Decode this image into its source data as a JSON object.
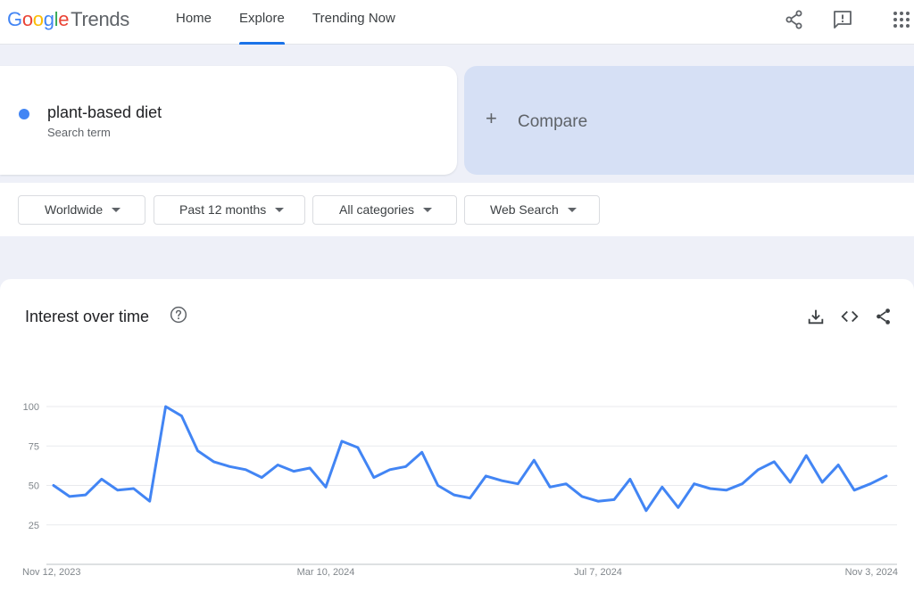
{
  "header": {
    "logo_google": [
      "G",
      "o",
      "o",
      "g",
      "l",
      "e"
    ],
    "logo_trends": "Trends",
    "nav": {
      "home": "Home",
      "explore": "Explore",
      "trending": "Trending Now"
    },
    "icons": [
      "share-icon",
      "feedback-icon",
      "apps-grid-icon"
    ]
  },
  "search_term": {
    "name": "plant-based diet",
    "subtitle": "Search term",
    "color": "#4285f4"
  },
  "compare": {
    "label": "Compare",
    "icon": "plus-icon"
  },
  "filters": {
    "region": "Worldwide",
    "period": "Past 12 months",
    "category": "All categories",
    "property": "Web Search"
  },
  "chart_card": {
    "title": "Interest over time",
    "icons": [
      "help-icon",
      "download-icon",
      "embed-icon",
      "share-icon"
    ]
  },
  "chart_data": {
    "type": "line",
    "title": "Interest over time",
    "ylim": [
      0,
      100
    ],
    "y_ticks": [
      "100",
      "75",
      "50",
      "25"
    ],
    "x_tick_labels": [
      "Nov 12, 2023",
      "Mar 10, 2024",
      "Jul 7, 2024",
      "Nov 3, 2024"
    ],
    "x_tick_indices": [
      0,
      17,
      34,
      51
    ],
    "grid": true,
    "series": [
      {
        "color": "#4285f4",
        "values": [
          50,
          43,
          44,
          54,
          47,
          48,
          40,
          100,
          94,
          72,
          65,
          62,
          60,
          55,
          63,
          59,
          61,
          49,
          78,
          74,
          55,
          60,
          62,
          71,
          50,
          44,
          42,
          56,
          53,
          51,
          66,
          49,
          51,
          43,
          40,
          41,
          54,
          34,
          49,
          36,
          51,
          48,
          47,
          51,
          60,
          65,
          52,
          69,
          52,
          63,
          47,
          51,
          56
        ]
      }
    ]
  }
}
